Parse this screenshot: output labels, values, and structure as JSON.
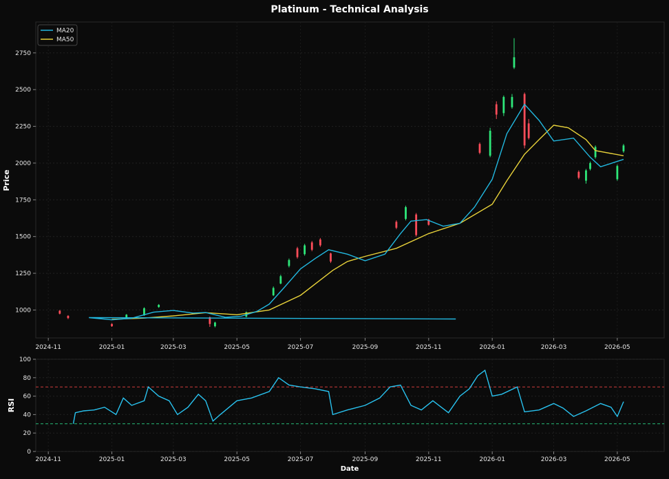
{
  "chart_data": {
    "type": "candlestick",
    "title": "Platinum - Technical Analysis",
    "colors": {
      "background": "#0b0b0b",
      "up": "#2ee87a",
      "down": "#ff4d5a",
      "ma20": "#22b8e0",
      "ma50": "#e8d23a",
      "rsi": "#29c3f0",
      "overbought_line": "#d23c3c",
      "oversold_line": "#28c07a",
      "text": "#e6e6e6"
    },
    "price_panel": {
      "ylabel": "Price",
      "ylim": [
        810,
        2960
      ],
      "yticks": [
        1000,
        1250,
        1500,
        1750,
        2000,
        2250,
        2500,
        2750
      ],
      "legend": [
        "MA20",
        "MA50"
      ],
      "legend_position": "top-left",
      "ma20": [
        [
          "2025-11-27",
          939
        ],
        [
          "2024-12-10",
          948
        ],
        [
          "2025-01-01",
          933
        ],
        [
          "2025-01-20",
          944
        ],
        [
          "2025-02-10",
          985
        ],
        [
          "2025-03-01",
          997
        ],
        [
          "2025-03-20",
          979
        ],
        [
          "2025-04-01",
          983
        ],
        [
          "2025-04-20",
          950
        ],
        [
          "2025-05-05",
          958
        ],
        [
          "2025-05-20",
          990
        ],
        [
          "2025-06-01",
          1040
        ],
        [
          "2025-06-15",
          1150
        ],
        [
          "2025-07-01",
          1280
        ],
        [
          "2025-07-15",
          1350
        ],
        [
          "2025-07-28",
          1410
        ],
        [
          "2025-08-15",
          1380
        ],
        [
          "2025-09-01",
          1335
        ],
        [
          "2025-09-20",
          1380
        ],
        [
          "2025-10-05",
          1520
        ],
        [
          "2025-10-15",
          1605
        ],
        [
          "2025-10-30",
          1615
        ],
        [
          "2025-11-15",
          1570
        ],
        [
          "2025-12-01",
          1590
        ],
        [
          "2025-12-15",
          1700
        ],
        [
          "2026-01-01",
          1890
        ],
        [
          "2026-01-15",
          2200
        ],
        [
          "2026-02-01",
          2400
        ],
        [
          "2026-02-15",
          2290
        ],
        [
          "2026-03-01",
          2150
        ],
        [
          "2026-03-20",
          2170
        ],
        [
          "2026-04-05",
          2040
        ],
        [
          "2026-04-15",
          1975
        ],
        [
          "2026-05-07",
          2025
        ]
      ],
      "ma50": [
        [
          "2025-01-01",
          937
        ],
        [
          "2025-02-01",
          945
        ],
        [
          "2025-03-01",
          960
        ],
        [
          "2025-04-01",
          982
        ],
        [
          "2025-05-01",
          968
        ],
        [
          "2025-06-01",
          1000
        ],
        [
          "2025-07-01",
          1100
        ],
        [
          "2025-08-01",
          1270
        ],
        [
          "2025-08-15",
          1330
        ],
        [
          "2025-09-01",
          1365
        ],
        [
          "2025-10-01",
          1420
        ],
        [
          "2025-11-01",
          1520
        ],
        [
          "2025-12-01",
          1590
        ],
        [
          "2026-01-01",
          1720
        ],
        [
          "2026-01-15",
          1880
        ],
        [
          "2026-02-01",
          2060
        ],
        [
          "2026-02-15",
          2160
        ],
        [
          "2026-03-01",
          2258
        ],
        [
          "2026-03-15",
          2240
        ],
        [
          "2026-04-01",
          2160
        ],
        [
          "2026-04-10",
          2085
        ],
        [
          "2026-05-07",
          2050
        ]
      ],
      "candles": [
        [
          "2024-11-12",
          995,
          975,
          1000,
          970
        ],
        [
          "2024-11-20",
          960,
          945,
          965,
          938
        ],
        [
          "2025-01-01",
          905,
          890,
          910,
          885
        ],
        [
          "2025-01-15",
          948,
          968,
          972,
          944
        ],
        [
          "2025-02-01",
          965,
          1012,
          1018,
          960
        ],
        [
          "2025-02-15",
          1020,
          1035,
          1040,
          1015
        ],
        [
          "2025-04-05",
          950,
          905,
          955,
          885
        ],
        [
          "2025-04-10",
          890,
          915,
          920,
          882
        ],
        [
          "2025-05-10",
          955,
          985,
          990,
          950
        ],
        [
          "2025-06-05",
          1100,
          1150,
          1160,
          1095
        ],
        [
          "2025-06-12",
          1180,
          1230,
          1240,
          1175
        ],
        [
          "2025-06-20",
          1300,
          1340,
          1350,
          1290
        ],
        [
          "2025-06-28",
          1420,
          1360,
          1430,
          1350
        ],
        [
          "2025-07-05",
          1380,
          1440,
          1450,
          1370
        ],
        [
          "2025-07-12",
          1460,
          1410,
          1470,
          1400
        ],
        [
          "2025-07-20",
          1480,
          1440,
          1490,
          1430
        ],
        [
          "2025-07-30",
          1385,
          1330,
          1390,
          1320
        ],
        [
          "2025-10-01",
          1600,
          1560,
          1610,
          1550
        ],
        [
          "2025-10-10",
          1620,
          1700,
          1710,
          1610
        ],
        [
          "2025-10-20",
          1650,
          1510,
          1660,
          1500
        ],
        [
          "2025-11-01",
          1615,
          1580,
          1620,
          1575
        ],
        [
          "2025-12-20",
          2130,
          2070,
          2140,
          2060
        ],
        [
          "2025-12-30",
          2050,
          2220,
          2240,
          2040
        ],
        [
          "2026-01-05",
          2400,
          2330,
          2420,
          2300
        ],
        [
          "2026-01-12",
          2340,
          2450,
          2460,
          2320
        ],
        [
          "2026-01-20",
          2380,
          2450,
          2470,
          2370
        ],
        [
          "2026-01-22",
          2650,
          2720,
          2850,
          2640
        ],
        [
          "2026-02-01",
          2470,
          2120,
          2480,
          2100
        ],
        [
          "2026-02-05",
          2270,
          2170,
          2300,
          2160
        ],
        [
          "2026-03-25",
          1940,
          1900,
          1950,
          1890
        ],
        [
          "2026-04-01",
          1880,
          1950,
          1960,
          1860
        ],
        [
          "2026-04-05",
          1960,
          2000,
          2010,
          1950
        ],
        [
          "2026-04-10",
          2040,
          2110,
          2120,
          2030
        ],
        [
          "2026-05-01",
          1890,
          1980,
          1990,
          1880
        ],
        [
          "2026-05-07",
          2080,
          2120,
          2130,
          2070
        ]
      ]
    },
    "rsi_panel": {
      "ylabel": "RSI",
      "xlabel": "Date",
      "ylim": [
        0,
        100
      ],
      "yticks": [
        0,
        20,
        40,
        60,
        80,
        100
      ],
      "overbought": 70,
      "oversold": 30,
      "values": [
        [
          "2024-11-25",
          30
        ],
        [
          "2024-11-27",
          42
        ],
        [
          "2024-12-05",
          44
        ],
        [
          "2024-12-15",
          45
        ],
        [
          "2024-12-25",
          48
        ],
        [
          "2025-01-05",
          40
        ],
        [
          "2025-01-12",
          58
        ],
        [
          "2025-01-20",
          50
        ],
        [
          "2025-02-01",
          55
        ],
        [
          "2025-02-05",
          70
        ],
        [
          "2025-02-15",
          60
        ],
        [
          "2025-02-25",
          55
        ],
        [
          "2025-03-05",
          40
        ],
        [
          "2025-03-15",
          48
        ],
        [
          "2025-03-25",
          62
        ],
        [
          "2025-04-01",
          55
        ],
        [
          "2025-04-08",
          33
        ],
        [
          "2025-04-15",
          40
        ],
        [
          "2025-05-01",
          55
        ],
        [
          "2025-05-15",
          58
        ],
        [
          "2025-06-01",
          65
        ],
        [
          "2025-06-10",
          80
        ],
        [
          "2025-06-20",
          72
        ],
        [
          "2025-07-01",
          70
        ],
        [
          "2025-07-15",
          68
        ],
        [
          "2025-07-28",
          65
        ],
        [
          "2025-08-01",
          40
        ],
        [
          "2025-08-15",
          45
        ],
        [
          "2025-09-01",
          50
        ],
        [
          "2025-09-15",
          58
        ],
        [
          "2025-09-25",
          70
        ],
        [
          "2025-10-05",
          72
        ],
        [
          "2025-10-15",
          50
        ],
        [
          "2025-10-25",
          45
        ],
        [
          "2025-11-05",
          55
        ],
        [
          "2025-11-20",
          42
        ],
        [
          "2025-12-01",
          60
        ],
        [
          "2025-12-10",
          68
        ],
        [
          "2025-12-18",
          82
        ],
        [
          "2025-12-25",
          88
        ],
        [
          "2026-01-01",
          60
        ],
        [
          "2026-01-10",
          62
        ],
        [
          "2026-01-25",
          70
        ],
        [
          "2026-02-01",
          43
        ],
        [
          "2026-02-15",
          45
        ],
        [
          "2026-03-01",
          52
        ],
        [
          "2026-03-10",
          47
        ],
        [
          "2026-03-20",
          38
        ],
        [
          "2026-04-01",
          44
        ],
        [
          "2026-04-15",
          52
        ],
        [
          "2026-04-25",
          48
        ],
        [
          "2026-05-01",
          38
        ],
        [
          "2026-05-07",
          54
        ]
      ]
    },
    "x_axis": {
      "domain": [
        "2024-10-20",
        "2026-06-15"
      ],
      "ticks": [
        "2024-11",
        "2025-01",
        "2025-03",
        "2025-05",
        "2025-07",
        "2025-09",
        "2025-11",
        "2026-01",
        "2026-03",
        "2026-05"
      ]
    }
  }
}
